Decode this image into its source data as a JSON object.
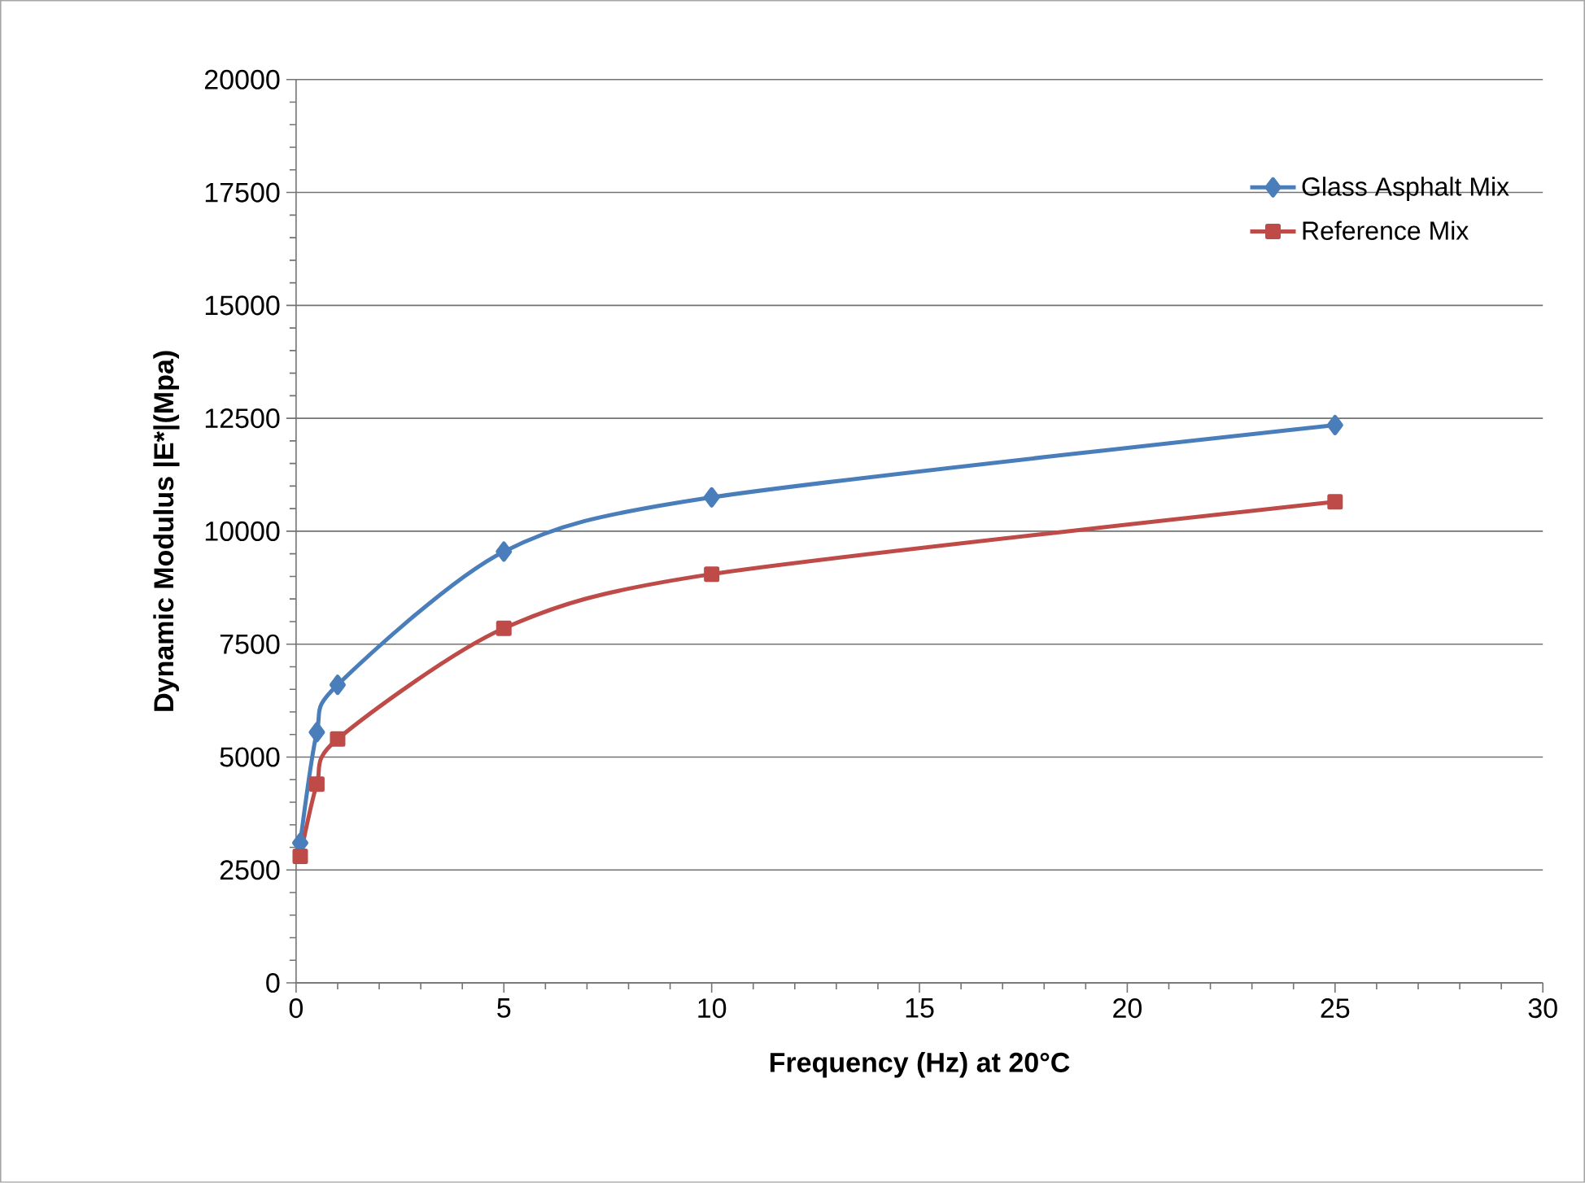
{
  "chart_data": {
    "type": "line",
    "xlabel": "Frequency (Hz) at 20°C",
    "ylabel": "Dynamic Modulus |E*|(Mpa)",
    "xlim": [
      0,
      30
    ],
    "xticks": [
      0,
      5,
      10,
      15,
      20,
      25,
      30
    ],
    "ylim": [
      0,
      20000
    ],
    "yticks": [
      0,
      2500,
      5000,
      7500,
      10000,
      12500,
      15000,
      17500,
      20000
    ],
    "grid": "y",
    "legend": "top right",
    "series": [
      {
        "name": "Glass Asphalt Mix",
        "color": "#4a7ebb",
        "marker": "diamond",
        "x": [
          0.1,
          0.5,
          1,
          5,
          10,
          25
        ],
        "values": [
          3100,
          5550,
          6600,
          9550,
          10750,
          12350
        ]
      },
      {
        "name": "Reference Mix",
        "color": "#be4b48",
        "marker": "square",
        "x": [
          0.1,
          0.5,
          1,
          5,
          10,
          25
        ],
        "values": [
          2800,
          4400,
          5400,
          7850,
          9050,
          10650
        ]
      }
    ]
  }
}
